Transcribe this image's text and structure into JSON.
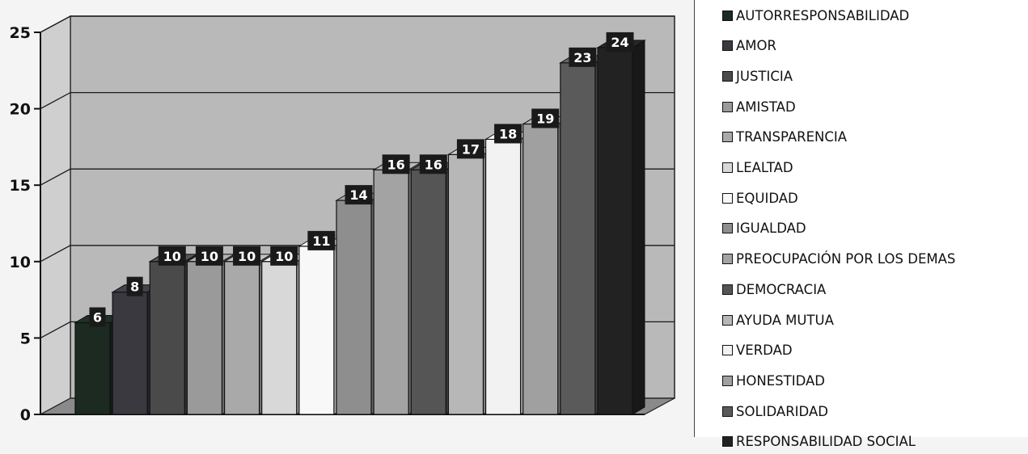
{
  "chart_data": {
    "type": "bar",
    "categories": [
      "AUTORRESPONSABILIDAD",
      "AMOR",
      "JUSTICIA",
      "AMISTAD",
      "TRANSPARENCIA",
      "LEALTAD",
      "EQUIDAD",
      "IGUALDAD",
      "PREOCUPACIÓN POR LOS DEMAS",
      "DEMOCRACIA",
      "AYUDA MUTUA",
      "VERDAD",
      "HONESTIDAD",
      "SOLIDARIDAD",
      "RESPONSABILIDAD SOCIAL"
    ],
    "values": [
      6,
      8,
      10,
      10,
      10,
      10,
      11,
      14,
      16,
      16,
      17,
      18,
      19,
      23,
      24
    ],
    "colors": [
      "#1c2a22",
      "#3b3940",
      "#4a4a4a",
      "#9a9a9a",
      "#a9a9a9",
      "#d8d8d8",
      "#f8f8f8",
      "#8e8e8e",
      "#a3a3a3",
      "#555555",
      "#b7b7b7",
      "#f2f2f2",
      "#a0a0a0",
      "#5a5a5a",
      "#222222"
    ],
    "data_labels": [
      "6",
      "8",
      "10",
      "10",
      "10",
      "10",
      "11",
      "14",
      "16",
      "16",
      "17",
      "18",
      "19",
      "23",
      "24"
    ],
    "yticks": [
      "0",
      "5",
      "10",
      "15",
      "20",
      "25"
    ],
    "ylim": [
      0,
      25
    ],
    "grid": true,
    "legend_position": "right",
    "style": "3d-bars"
  }
}
